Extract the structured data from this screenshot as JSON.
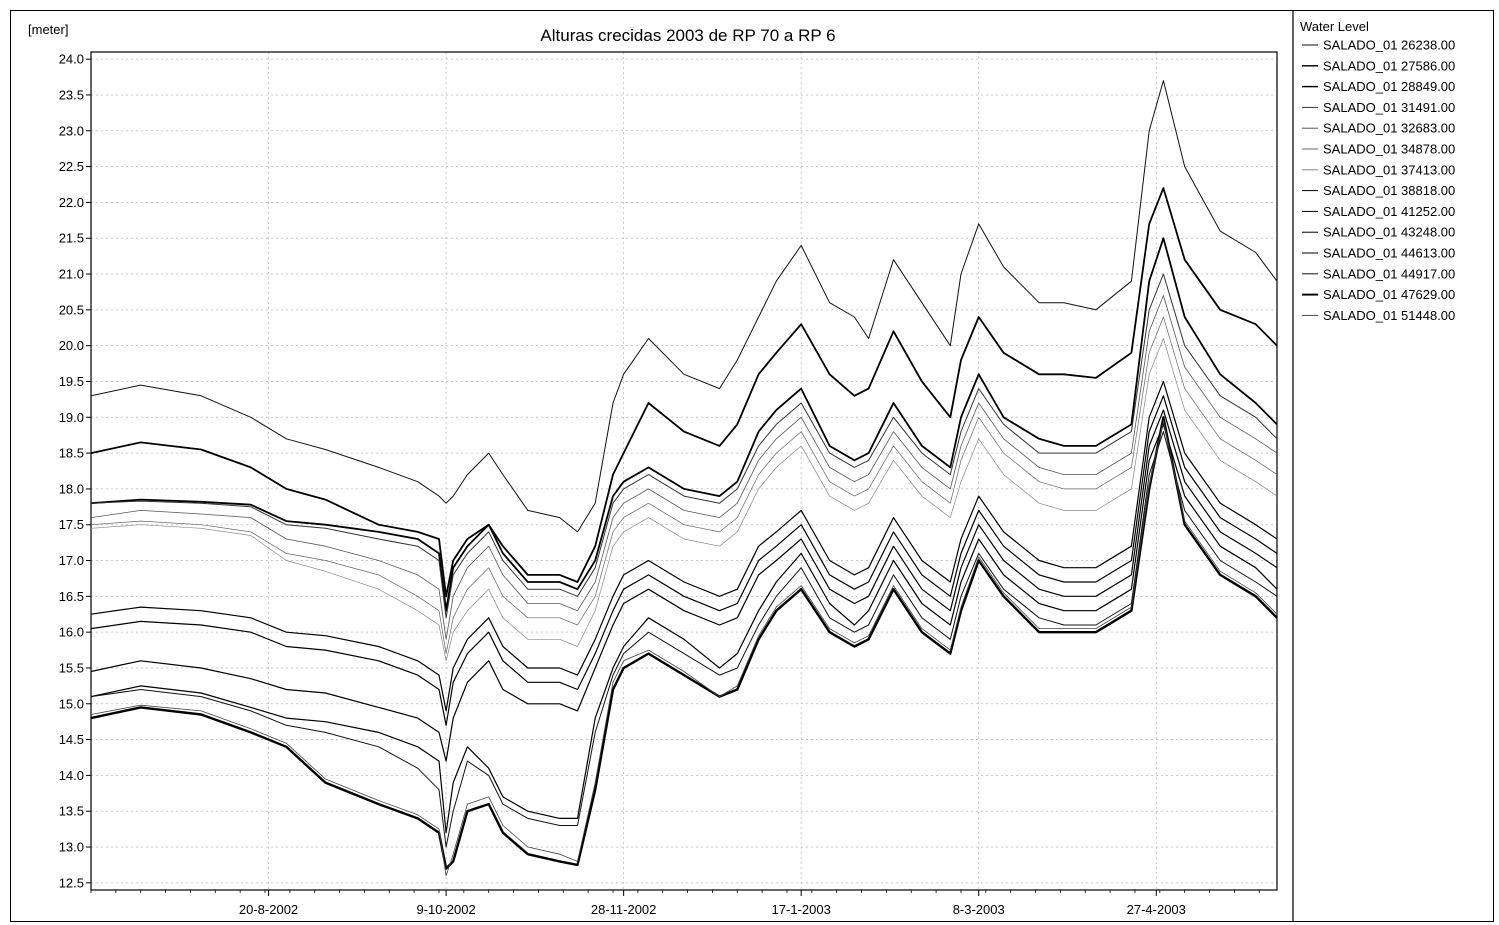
{
  "chart_data": {
    "type": "line",
    "title": "Alturas crecidas 2003 de RP 70 a RP 6",
    "ylabel": "[meter]",
    "xlabel": "",
    "x_dates": [
      "2002-07-01",
      "2002-07-15",
      "2002-08-01",
      "2002-08-15",
      "2002-08-25",
      "2002-09-05",
      "2002-09-20",
      "2002-10-01",
      "2002-10-07",
      "2002-10-09",
      "2002-10-11",
      "2002-10-15",
      "2002-10-21",
      "2002-10-25",
      "2002-11-01",
      "2002-11-10",
      "2002-11-15",
      "2002-11-20",
      "2002-11-25",
      "2002-11-28",
      "2002-12-05",
      "2002-12-15",
      "2002-12-25",
      "2002-12-30",
      "2003-01-05",
      "2003-01-10",
      "2003-01-17",
      "2003-01-25",
      "2003-02-01",
      "2003-02-05",
      "2003-02-12",
      "2003-02-20",
      "2003-02-28",
      "2003-03-03",
      "2003-03-08",
      "2003-03-15",
      "2003-03-25",
      "2003-04-01",
      "2003-04-10",
      "2003-04-20",
      "2003-04-25",
      "2003-04-29",
      "2003-05-05",
      "2003-05-15",
      "2003-05-25",
      "2003-05-31"
    ],
    "x_tick_labels": [
      "20-8-2002",
      "9-10-2002",
      "28-11-2002",
      "17-1-2003",
      "8-3-2003",
      "27-4-2003"
    ],
    "x_tick_dates": [
      "2002-08-20",
      "2002-10-09",
      "2002-11-28",
      "2003-01-17",
      "2003-03-08",
      "2003-04-27"
    ],
    "xlim": [
      "2002-07-01",
      "2003-05-31"
    ],
    "ylim": [
      12.4,
      24.1
    ],
    "y_ticks": [
      "12.5",
      "13.0",
      "13.5",
      "14.0",
      "14.5",
      "15.0",
      "15.5",
      "16.0",
      "16.5",
      "17.0",
      "17.5",
      "18.0",
      "18.5",
      "19.0",
      "19.5",
      "20.0",
      "20.5",
      "21.0",
      "21.5",
      "22.0",
      "22.5",
      "23.0",
      "23.5",
      "24.0"
    ],
    "grid": true,
    "legend_position": "right",
    "legend_title": "Water Level",
    "series": [
      {
        "name": "SALADO_01  26238.00",
        "values": [
          19.3,
          19.45,
          19.3,
          19.0,
          18.7,
          18.55,
          18.3,
          18.1,
          17.9,
          17.8,
          17.9,
          18.2,
          18.5,
          18.2,
          17.7,
          17.6,
          17.4,
          17.8,
          19.2,
          19.6,
          20.1,
          19.6,
          19.4,
          19.8,
          20.4,
          20.9,
          21.4,
          20.6,
          20.4,
          20.1,
          21.2,
          20.6,
          20.0,
          21.0,
          21.7,
          21.1,
          20.6,
          20.6,
          20.5,
          20.9,
          23.0,
          23.7,
          22.5,
          21.6,
          21.3,
          20.9
        ],
        "color": "#111111",
        "width": 1.0
      },
      {
        "name": "SALADO_01  27586.00",
        "values": [
          18.5,
          18.65,
          18.55,
          18.3,
          18.0,
          17.85,
          17.5,
          17.4,
          17.3,
          16.5,
          17.0,
          17.3,
          17.5,
          17.2,
          16.8,
          16.8,
          16.7,
          17.2,
          18.2,
          18.5,
          19.2,
          18.8,
          18.6,
          18.9,
          19.6,
          19.9,
          20.3,
          19.6,
          19.3,
          19.4,
          20.2,
          19.5,
          19.0,
          19.8,
          20.4,
          19.9,
          19.6,
          19.6,
          19.55,
          19.9,
          21.7,
          22.2,
          21.2,
          20.5,
          20.3,
          20.0
        ],
        "color": "#000000",
        "width": 1.8
      },
      {
        "name": "SALADO_01  28849.00",
        "values": [
          17.8,
          17.85,
          17.82,
          17.78,
          17.55,
          17.5,
          17.4,
          17.3,
          17.1,
          16.3,
          16.9,
          17.2,
          17.5,
          17.1,
          16.7,
          16.7,
          16.6,
          17.0,
          17.9,
          18.1,
          18.3,
          18.0,
          17.9,
          18.1,
          18.8,
          19.1,
          19.4,
          18.6,
          18.4,
          18.5,
          19.2,
          18.6,
          18.3,
          19.0,
          19.6,
          19.0,
          18.7,
          18.6,
          18.6,
          18.9,
          20.9,
          21.5,
          20.4,
          19.6,
          19.2,
          18.9
        ],
        "color": "#000000",
        "width": 1.8
      },
      {
        "name": "SALADO_01  31491.00",
        "values": [
          17.8,
          17.83,
          17.8,
          17.75,
          17.5,
          17.45,
          17.3,
          17.2,
          17.0,
          16.2,
          16.8,
          17.1,
          17.4,
          17.0,
          16.6,
          16.6,
          16.5,
          16.9,
          17.8,
          18.0,
          18.2,
          17.9,
          17.8,
          18.0,
          18.6,
          18.9,
          19.2,
          18.5,
          18.3,
          18.4,
          19.0,
          18.5,
          18.2,
          18.8,
          19.4,
          18.9,
          18.5,
          18.5,
          18.5,
          18.8,
          20.5,
          21.0,
          20.0,
          19.3,
          19.0,
          18.7
        ],
        "color": "#333333",
        "width": 1.0
      },
      {
        "name": "SALADO_01  32683.00",
        "values": [
          17.6,
          17.7,
          17.65,
          17.6,
          17.3,
          17.2,
          17.0,
          16.8,
          16.6,
          15.9,
          16.5,
          16.9,
          17.2,
          16.8,
          16.4,
          16.4,
          16.3,
          16.7,
          17.6,
          17.8,
          18.0,
          17.7,
          17.6,
          17.8,
          18.4,
          18.7,
          19.0,
          18.3,
          18.1,
          18.2,
          18.8,
          18.3,
          18.0,
          18.6,
          19.2,
          18.7,
          18.3,
          18.2,
          18.2,
          18.5,
          20.2,
          20.7,
          19.7,
          19.0,
          18.7,
          18.5
        ],
        "color": "#555555",
        "width": 0.8
      },
      {
        "name": "SALADO_01  34878.00",
        "values": [
          17.5,
          17.55,
          17.5,
          17.4,
          17.1,
          17.0,
          16.8,
          16.5,
          16.3,
          15.7,
          16.2,
          16.6,
          16.9,
          16.5,
          16.2,
          16.2,
          16.1,
          16.5,
          17.4,
          17.6,
          17.8,
          17.5,
          17.4,
          17.6,
          18.2,
          18.5,
          18.8,
          18.1,
          17.9,
          18.0,
          18.6,
          18.1,
          17.8,
          18.4,
          19.0,
          18.5,
          18.1,
          18.0,
          18.0,
          18.3,
          19.9,
          20.4,
          19.4,
          18.7,
          18.4,
          18.2
        ],
        "color": "#666666",
        "width": 0.7
      },
      {
        "name": "SALADO_01  37413.00",
        "values": [
          17.45,
          17.5,
          17.45,
          17.35,
          17.0,
          16.85,
          16.6,
          16.3,
          16.1,
          15.6,
          16.0,
          16.3,
          16.6,
          16.2,
          15.9,
          15.9,
          15.8,
          16.3,
          17.2,
          17.4,
          17.6,
          17.3,
          17.2,
          17.4,
          18.0,
          18.3,
          18.6,
          17.9,
          17.7,
          17.8,
          18.4,
          17.9,
          17.6,
          18.1,
          18.7,
          18.2,
          17.8,
          17.7,
          17.7,
          18.0,
          19.6,
          20.1,
          19.1,
          18.4,
          18.1,
          17.9
        ],
        "color": "#888888",
        "width": 0.7
      },
      {
        "name": "SALADO_01  38818.00",
        "values": [
          16.25,
          16.35,
          16.3,
          16.2,
          16.0,
          15.95,
          15.8,
          15.6,
          15.4,
          14.9,
          15.5,
          15.9,
          16.2,
          15.8,
          15.5,
          15.5,
          15.4,
          15.9,
          16.5,
          16.8,
          17.0,
          16.7,
          16.5,
          16.6,
          17.2,
          17.4,
          17.7,
          17.0,
          16.8,
          16.9,
          17.6,
          17.0,
          16.7,
          17.3,
          17.9,
          17.4,
          17.0,
          16.9,
          16.9,
          17.2,
          19.0,
          19.5,
          18.5,
          17.8,
          17.5,
          17.3
        ],
        "color": "#000000",
        "width": 1.2
      },
      {
        "name": "SALADO_01  41252.00",
        "values": [
          16.05,
          16.15,
          16.1,
          16.0,
          15.8,
          15.75,
          15.6,
          15.4,
          15.2,
          14.7,
          15.3,
          15.7,
          16.0,
          15.6,
          15.3,
          15.3,
          15.2,
          15.7,
          16.3,
          16.6,
          16.8,
          16.5,
          16.3,
          16.4,
          17.0,
          17.2,
          17.5,
          16.8,
          16.6,
          16.7,
          17.4,
          16.8,
          16.5,
          17.1,
          17.7,
          17.2,
          16.8,
          16.7,
          16.7,
          17.0,
          18.8,
          19.3,
          18.3,
          17.6,
          17.3,
          17.1
        ],
        "color": "#000000",
        "width": 1.2
      },
      {
        "name": "SALADO_01  43248.00",
        "values": [
          15.45,
          15.6,
          15.5,
          15.35,
          15.2,
          15.15,
          14.95,
          14.8,
          14.6,
          14.2,
          14.8,
          15.3,
          15.6,
          15.2,
          15.0,
          15.0,
          14.9,
          15.5,
          16.1,
          16.4,
          16.6,
          16.3,
          16.1,
          16.2,
          16.8,
          17.0,
          17.3,
          16.6,
          16.4,
          16.5,
          17.2,
          16.6,
          16.3,
          16.9,
          17.5,
          17.0,
          16.6,
          16.5,
          16.5,
          16.8,
          18.6,
          19.1,
          18.1,
          17.4,
          17.1,
          16.9
        ],
        "color": "#000000",
        "width": 1.2
      },
      {
        "name": "SALADO_01  44613.00",
        "values": [
          15.1,
          15.25,
          15.15,
          14.95,
          14.8,
          14.75,
          14.6,
          14.4,
          14.2,
          13.2,
          13.9,
          14.4,
          14.1,
          13.7,
          13.5,
          13.4,
          13.4,
          14.8,
          15.5,
          15.8,
          16.2,
          15.9,
          15.5,
          15.7,
          16.3,
          16.7,
          17.1,
          16.4,
          16.1,
          16.3,
          17.0,
          16.4,
          16.1,
          16.7,
          17.3,
          16.8,
          16.4,
          16.3,
          16.3,
          16.6,
          18.4,
          18.9,
          17.9,
          17.2,
          16.9,
          16.6
        ],
        "color": "#000000",
        "width": 1.2
      },
      {
        "name": "SALADO_01  44917.00",
        "values": [
          15.1,
          15.2,
          15.1,
          14.9,
          14.7,
          14.6,
          14.4,
          14.1,
          13.8,
          13.0,
          13.5,
          14.2,
          14.0,
          13.6,
          13.4,
          13.3,
          13.3,
          14.6,
          15.4,
          15.7,
          16.0,
          15.7,
          15.4,
          15.5,
          16.1,
          16.5,
          16.9,
          16.2,
          16.0,
          16.1,
          16.8,
          16.2,
          15.9,
          16.5,
          17.1,
          16.6,
          16.2,
          16.1,
          16.1,
          16.4,
          18.2,
          18.8,
          17.7,
          17.0,
          16.7,
          16.5
        ],
        "color": "#111111",
        "width": 1.0
      },
      {
        "name": "SALADO_01  47629.00",
        "values": [
          14.8,
          14.95,
          14.85,
          14.6,
          14.4,
          13.9,
          13.6,
          13.4,
          13.2,
          12.7,
          12.8,
          13.5,
          13.6,
          13.2,
          12.9,
          12.8,
          12.75,
          13.8,
          15.2,
          15.5,
          15.7,
          15.4,
          15.1,
          15.2,
          15.9,
          16.3,
          16.6,
          16.0,
          15.8,
          15.9,
          16.6,
          16.0,
          15.7,
          16.3,
          17.0,
          16.5,
          16.0,
          16.0,
          16.0,
          16.3,
          18.0,
          19.0,
          17.5,
          16.8,
          16.5,
          16.2
        ],
        "color": "#000000",
        "width": 2.4
      },
      {
        "name": "SALADO_01  51448.00",
        "values": [
          14.85,
          14.98,
          14.9,
          14.65,
          14.45,
          13.95,
          13.65,
          13.45,
          13.25,
          12.6,
          12.9,
          13.6,
          13.7,
          13.3,
          13.0,
          12.9,
          12.8,
          13.9,
          15.3,
          15.6,
          15.75,
          15.45,
          15.1,
          15.25,
          15.95,
          16.35,
          16.65,
          16.05,
          15.85,
          15.95,
          16.65,
          16.05,
          15.75,
          16.35,
          17.05,
          16.55,
          16.05,
          16.05,
          16.05,
          16.35,
          18.05,
          18.95,
          17.55,
          16.85,
          16.55,
          16.25
        ],
        "color": "#444444",
        "width": 0.8
      }
    ]
  }
}
